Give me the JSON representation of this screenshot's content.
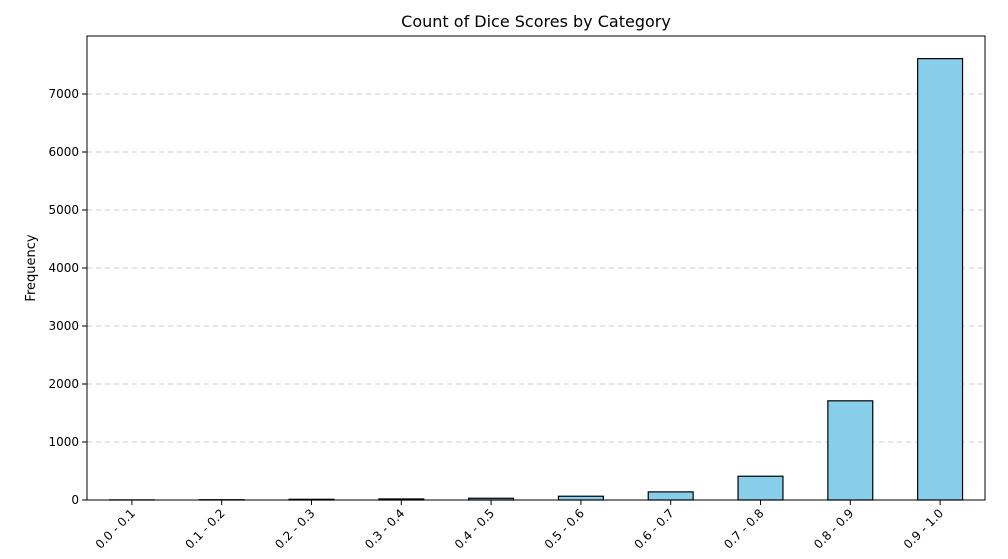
{
  "chart_data": {
    "type": "bar",
    "title": "Count of Dice Scores by Category",
    "xlabel": "",
    "ylabel": "Frequency",
    "categories": [
      "0.0 - 0.1",
      "0.1 - 0.2",
      "0.2 - 0.3",
      "0.3 - 0.4",
      "0.4 - 0.5",
      "0.5 - 0.6",
      "0.6 - 0.7",
      "0.7 - 0.8",
      "0.8 - 0.9",
      "0.9 - 1.0"
    ],
    "values": [
      2,
      5,
      12,
      18,
      30,
      65,
      140,
      410,
      1710,
      7610
    ],
    "ylim": [
      0,
      8000
    ],
    "yticks": [
      0,
      1000,
      2000,
      3000,
      4000,
      5000,
      6000,
      7000
    ],
    "grid": "horizontal dashed",
    "colors": {
      "bar_fill": "#87ceeb",
      "bar_edge": "#000000",
      "grid": "#cccccc"
    }
  }
}
